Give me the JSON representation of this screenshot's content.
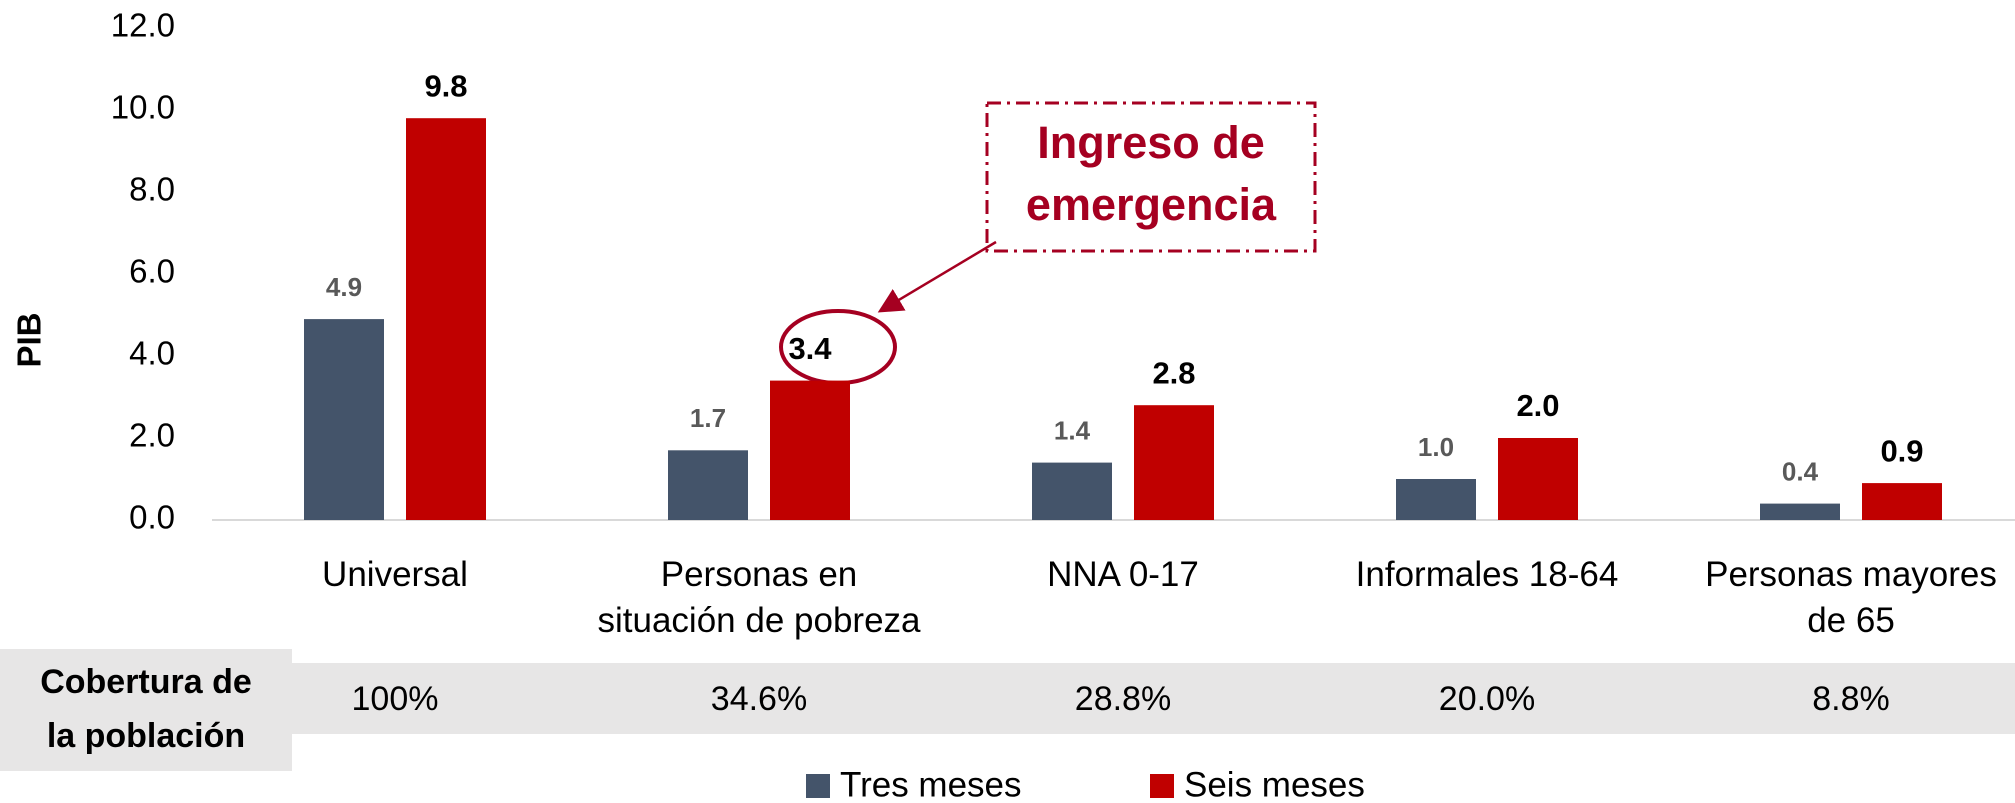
{
  "chart_data": {
    "type": "bar",
    "y_label": "PIB",
    "categories": [
      "Universal",
      "Personas en\nsituación de pobreza",
      "NNA 0-17",
      "Informales 18-64",
      "Personas mayores\nde 65"
    ],
    "series": [
      {
        "name": "Tres meses",
        "color": "#44546a",
        "values": [
          4.9,
          1.7,
          1.4,
          1.0,
          0.4
        ],
        "value_labels": [
          "4.9",
          "1.7",
          "1.4",
          "1.0",
          "0.4"
        ]
      },
      {
        "name": "Seis meses",
        "color": "#c00000",
        "values": [
          9.8,
          3.4,
          2.8,
          2.0,
          0.9
        ],
        "value_labels": [
          "9.8",
          "3.4",
          "2.8",
          "2.0",
          "0.9"
        ]
      }
    ],
    "ylim": [
      0,
      12
    ],
    "yticks": [
      {
        "value": 0,
        "label": "0.0"
      },
      {
        "value": 2,
        "label": "2.0"
      },
      {
        "value": 4,
        "label": "4.0"
      },
      {
        "value": 6,
        "label": "6.0"
      },
      {
        "value": 8,
        "label": "8.0"
      },
      {
        "value": 10,
        "label": "10.0"
      },
      {
        "value": 12,
        "label": "12.0"
      }
    ],
    "coverage": {
      "label": "Cobertura de\nla población",
      "values": [
        "100%",
        "34.6%",
        "28.8%",
        "20.0%",
        "8.8%"
      ]
    },
    "annotation": "Ingreso de\nemergencia",
    "legend": "bottom"
  }
}
